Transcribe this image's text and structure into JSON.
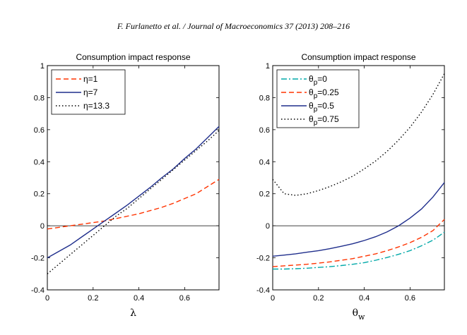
{
  "header": {
    "citation": "F. Furlanetto et al. / Journal of Macroeconomics 37 (2013) 208–216"
  },
  "chart_data": [
    {
      "type": "line",
      "title": "Consumption impact response",
      "xlabel": "λ",
      "ylabel": "",
      "xlim": [
        0,
        0.75
      ],
      "ylim": [
        -0.4,
        1
      ],
      "xticks": [
        0,
        0.2,
        0.4,
        0.6
      ],
      "yticks": [
        -0.4,
        -0.2,
        0,
        0.2,
        0.4,
        0.6,
        0.8,
        1
      ],
      "x_tick_labels": [
        "0",
        "0.2",
        "0.4",
        "0.6"
      ],
      "y_tick_labels": [
        "-0.4",
        "-0.2",
        "0",
        "0.2",
        "0.4",
        "0.6",
        "0.8",
        "1"
      ],
      "zero_line": true,
      "grid": false,
      "legend_position": "top-left",
      "x": [
        0,
        0.05,
        0.1,
        0.15,
        0.2,
        0.25,
        0.3,
        0.35,
        0.4,
        0.45,
        0.5,
        0.55,
        0.6,
        0.65,
        0.7,
        0.75
      ],
      "series": [
        {
          "name": "η=1",
          "legend_main": "η=1",
          "legend_sub": "",
          "color": "#ff3300",
          "dash": "dashed",
          "values": [
            -0.02,
            -0.01,
            0.0,
            0.01,
            0.02,
            0.03,
            0.045,
            0.06,
            0.075,
            0.095,
            0.115,
            0.14,
            0.17,
            0.2,
            0.245,
            0.29
          ]
        },
        {
          "name": "η=7",
          "legend_main": "η=7",
          "legend_sub": "",
          "color": "#1f2e8c",
          "dash": "solid",
          "values": [
            -0.2,
            -0.16,
            -0.12,
            -0.07,
            -0.02,
            0.03,
            0.08,
            0.13,
            0.185,
            0.24,
            0.3,
            0.355,
            0.42,
            0.48,
            0.55,
            0.62
          ]
        },
        {
          "name": "η=13.3",
          "legend_main": "η=13.3",
          "legend_sub": "",
          "color": "#000000",
          "dash": "dotted",
          "values": [
            -0.3,
            -0.24,
            -0.18,
            -0.12,
            -0.06,
            0.0,
            0.06,
            0.11,
            0.17,
            0.23,
            0.29,
            0.35,
            0.41,
            0.47,
            0.53,
            0.595
          ]
        }
      ]
    },
    {
      "type": "line",
      "title": "Consumption impact response",
      "xlabel": "θw",
      "xlabel_main": "θ",
      "xlabel_sub": "w",
      "ylabel": "",
      "xlim": [
        0,
        0.75
      ],
      "ylim": [
        -0.4,
        1
      ],
      "xticks": [
        0,
        0.2,
        0.4,
        0.6
      ],
      "yticks": [
        -0.4,
        -0.2,
        0,
        0.2,
        0.4,
        0.6,
        0.8,
        1
      ],
      "x_tick_labels": [
        "0",
        "0.2",
        "0.4",
        "0.6"
      ],
      "y_tick_labels": [
        "-0.4",
        "-0.2",
        "0",
        "0.2",
        "0.4",
        "0.6",
        "0.8",
        "1"
      ],
      "zero_line": true,
      "grid": false,
      "legend_position": "top-left",
      "x": [
        0,
        0.05,
        0.1,
        0.15,
        0.2,
        0.25,
        0.3,
        0.35,
        0.4,
        0.45,
        0.5,
        0.55,
        0.6,
        0.65,
        0.7,
        0.75
      ],
      "series": [
        {
          "name": "θp=0",
          "legend_main": "θ",
          "legend_sub": "p",
          "legend_tail": "=0",
          "color": "#00a8a8",
          "dash": "dashdot",
          "values": [
            -0.27,
            -0.27,
            -0.268,
            -0.265,
            -0.26,
            -0.255,
            -0.248,
            -0.24,
            -0.23,
            -0.215,
            -0.198,
            -0.178,
            -0.155,
            -0.125,
            -0.09,
            -0.04
          ]
        },
        {
          "name": "θp=0.25",
          "legend_main": "θ",
          "legend_sub": "p",
          "legend_tail": "=0.25",
          "color": "#ff3300",
          "dash": "dashed",
          "values": [
            -0.255,
            -0.25,
            -0.245,
            -0.24,
            -0.233,
            -0.225,
            -0.215,
            -0.205,
            -0.19,
            -0.175,
            -0.155,
            -0.132,
            -0.105,
            -0.072,
            -0.03,
            0.04
          ]
        },
        {
          "name": "θp=0.5",
          "legend_main": "θ",
          "legend_sub": "p",
          "legend_tail": "=0.5",
          "color": "#1f2e8c",
          "dash": "solid",
          "values": [
            -0.19,
            -0.183,
            -0.175,
            -0.165,
            -0.155,
            -0.143,
            -0.128,
            -0.112,
            -0.092,
            -0.068,
            -0.038,
            0.0,
            0.048,
            0.105,
            0.18,
            0.27
          ]
        },
        {
          "name": "θp=0.75",
          "legend_main": "θ",
          "legend_sub": "p",
          "legend_tail": "=0.75",
          "color": "#000000",
          "dash": "dotted",
          "values": [
            0.29,
            0.2,
            0.19,
            0.2,
            0.22,
            0.245,
            0.275,
            0.31,
            0.355,
            0.405,
            0.465,
            0.535,
            0.615,
            0.71,
            0.82,
            0.95
          ]
        }
      ]
    }
  ]
}
